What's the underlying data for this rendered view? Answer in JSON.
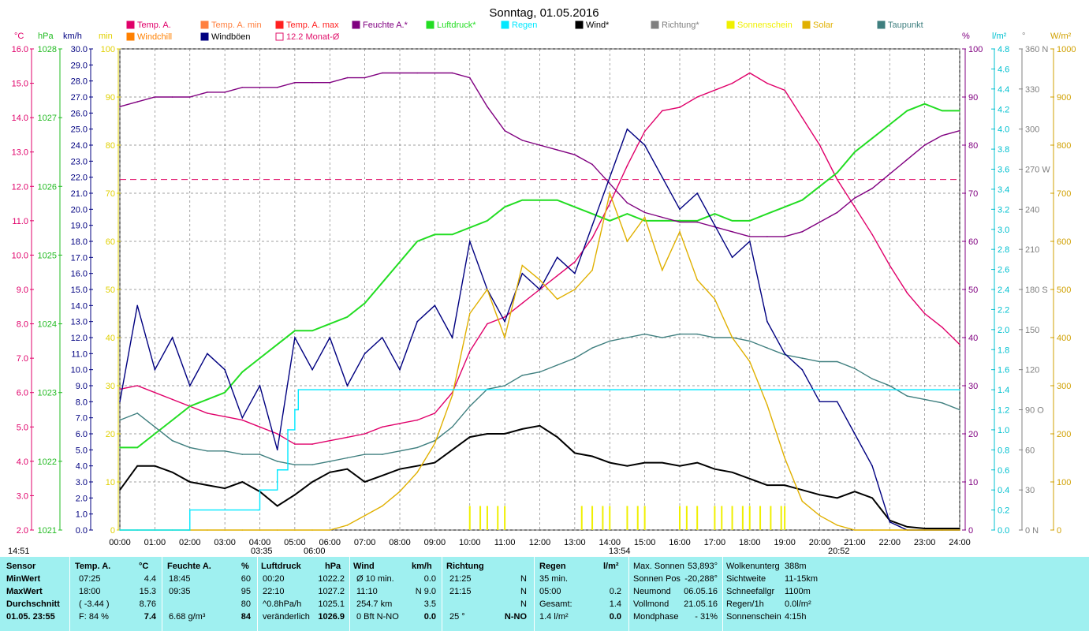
{
  "chart_data": {
    "type": "line",
    "title": "Sonntag, 01.05.2016",
    "x_unit": "hours",
    "xlim": [
      0,
      24
    ],
    "x_ticks": [
      "00:00",
      "01:00",
      "02:00",
      "03:00",
      "04:00",
      "05:00",
      "06:00",
      "07:00",
      "08:00",
      "09:00",
      "10:00",
      "11:00",
      "12:00",
      "13:00",
      "14:00",
      "15:00",
      "16:00",
      "17:00",
      "18:00",
      "19:00",
      "20:00",
      "21:00",
      "22:00",
      "23:00",
      "24:00"
    ],
    "time_markers": {
      "left": "14:51",
      "sunrise": "03:35",
      "dawn": "06:00",
      "noon": "13:54",
      "sunset": "20:52"
    },
    "axes": {
      "temp": {
        "unit": "°C",
        "ylim": [
          2,
          16
        ],
        "ticks": [
          "16.0",
          "15.0",
          "14.0",
          "13.0",
          "12.0",
          "11.0",
          "10.0",
          "9.0",
          "8.0",
          "7.0",
          "6.0",
          "5.0",
          "4.0",
          "3.0",
          "2.0"
        ]
      },
      "pressure": {
        "unit": "hPa",
        "ylim": [
          1021,
          1028
        ],
        "ticks": [
          "1028",
          "1027",
          "1026",
          "1025",
          "1024",
          "1023",
          "1022",
          "1021"
        ]
      },
      "wind": {
        "unit": "km/h",
        "ylim": [
          0,
          30
        ],
        "ticks": [
          "30.0",
          "29.0",
          "28.0",
          "27.0",
          "26.0",
          "25.0",
          "24.0",
          "23.0",
          "22.0",
          "21.0",
          "20.0",
          "19.0",
          "18.0",
          "17.0",
          "16.0",
          "15.0",
          "14.0",
          "13.0",
          "12.0",
          "11.0",
          "10.0",
          "9.0",
          "8.0",
          "7.0",
          "6.0",
          "5.0",
          "4.0",
          "3.0",
          "2.0",
          "1.0",
          "0.0"
        ]
      },
      "sunshine": {
        "unit": "min",
        "ylim": [
          0,
          100
        ],
        "ticks": [
          "100",
          "90",
          "80",
          "70",
          "60",
          "50",
          "40",
          "30",
          "20",
          "10",
          "0"
        ]
      },
      "humidity": {
        "unit": "%",
        "ylim": [
          0,
          100
        ],
        "ticks": [
          "100",
          "90",
          "80",
          "70",
          "60",
          "50",
          "40",
          "30",
          "20",
          "10",
          "0"
        ]
      },
      "rain": {
        "unit": "l/m²",
        "ylim": [
          0,
          4.8
        ],
        "ticks": [
          "4.8",
          "4.6",
          "4.4",
          "4.2",
          "4.0",
          "3.8",
          "3.6",
          "3.4",
          "3.2",
          "3.0",
          "2.8",
          "2.6",
          "2.4",
          "2.2",
          "2.0",
          "1.8",
          "1.6",
          "1.4",
          "1.2",
          "1.0",
          "0.8",
          "0.6",
          "0.4",
          "0.2",
          "0.0"
        ]
      },
      "direction": {
        "unit": "°",
        "ylim": [
          0,
          360
        ],
        "ticks": [
          "360 N",
          "330",
          "300",
          "270 W",
          "240",
          "210",
          "180 S",
          "150",
          "120",
          "90 O",
          "60",
          "30",
          "0 N"
        ]
      },
      "solar": {
        "unit": "W/m²",
        "ylim": [
          0,
          1000
        ],
        "ticks": [
          "1000",
          "900",
          "800",
          "700",
          "600",
          "500",
          "400",
          "300",
          "200",
          "100",
          "0"
        ]
      }
    },
    "legend": [
      {
        "label": "Temp. A.",
        "color": "#e0006a"
      },
      {
        "label": "Temp. A. min",
        "color": "#ff8040"
      },
      {
        "label": "Temp. A. max",
        "color": "#ff2020"
      },
      {
        "label": "Feuchte A.*",
        "color": "#800080"
      },
      {
        "label": "Luftdruck*",
        "color": "#22dd22"
      },
      {
        "label": "Regen",
        "color": "#00e8ff"
      },
      {
        "label": "Wind*",
        "color": "#000000"
      },
      {
        "label": "Richtung*",
        "color": "#808080"
      },
      {
        "label": "Sonnenschein",
        "color": "#f0f000"
      },
      {
        "label": "Solar",
        "color": "#e0b000"
      },
      {
        "label": "Taupunkt",
        "color": "#3f7f7f"
      },
      {
        "label": "Windchill",
        "color": "#ff8000"
      },
      {
        "label": "Windböen",
        "color": "#000080"
      },
      {
        "label": "12.2 Monat-Ø",
        "color": "#e0106a"
      }
    ],
    "monthly_avg_temp": 12.2,
    "series": [
      {
        "name": "Temp. A.",
        "axis": "temp",
        "color": "#e0006a",
        "x": [
          0,
          0.5,
          1,
          1.5,
          2,
          2.5,
          3,
          3.5,
          4,
          4.5,
          5,
          5.5,
          6,
          6.5,
          7,
          7.5,
          8,
          8.5,
          9,
          9.5,
          10,
          10.5,
          11,
          11.5,
          12,
          12.5,
          13,
          13.5,
          14,
          14.5,
          15,
          15.5,
          16,
          16.5,
          17,
          17.5,
          18,
          18.5,
          19,
          19.5,
          20,
          20.5,
          21,
          21.5,
          22,
          22.5,
          23,
          23.5,
          24
        ],
        "y": [
          6.1,
          6.2,
          6.0,
          5.8,
          5.6,
          5.4,
          5.3,
          5.2,
          5.0,
          4.8,
          4.5,
          4.5,
          4.6,
          4.7,
          4.8,
          5.0,
          5.1,
          5.2,
          5.4,
          6.0,
          7.2,
          8.0,
          8.2,
          8.6,
          9.0,
          9.4,
          9.8,
          10.5,
          11.5,
          12.6,
          13.6,
          14.2,
          14.3,
          14.6,
          14.8,
          15.0,
          15.3,
          15.0,
          14.8,
          14.0,
          13.2,
          12.2,
          11.4,
          10.6,
          9.7,
          8.9,
          8.3,
          7.9,
          7.4
        ]
      },
      {
        "name": "Luftdruck*",
        "axis": "pressure",
        "color": "#22dd22",
        "x": [
          0,
          0.5,
          1,
          1.5,
          2,
          2.5,
          3,
          3.5,
          4,
          4.5,
          5,
          5.5,
          6,
          6.5,
          7,
          7.5,
          8,
          8.5,
          9,
          9.5,
          10,
          10.5,
          11,
          11.5,
          12,
          12.5,
          13,
          13.5,
          14,
          14.5,
          15,
          15.5,
          16,
          16.5,
          17,
          17.5,
          18,
          18.5,
          19,
          19.5,
          20,
          20.5,
          21,
          21.5,
          22,
          22.5,
          23,
          23.5,
          24
        ],
        "y": [
          1022.2,
          1022.2,
          1022.4,
          1022.6,
          1022.8,
          1022.9,
          1023.0,
          1023.3,
          1023.5,
          1023.7,
          1023.9,
          1023.9,
          1024.0,
          1024.1,
          1024.3,
          1024.6,
          1024.9,
          1025.2,
          1025.3,
          1025.3,
          1025.4,
          1025.5,
          1025.7,
          1025.8,
          1025.8,
          1025.8,
          1025.7,
          1025.6,
          1025.5,
          1025.6,
          1025.5,
          1025.5,
          1025.5,
          1025.5,
          1025.6,
          1025.5,
          1025.5,
          1025.6,
          1025.7,
          1025.8,
          1026.0,
          1026.2,
          1026.5,
          1026.7,
          1026.9,
          1027.1,
          1027.2,
          1027.1,
          1027.1
        ]
      },
      {
        "name": "Feuchte A.*",
        "axis": "humidity",
        "color": "#800080",
        "x": [
          0,
          0.5,
          1,
          1.5,
          2,
          2.5,
          3,
          3.5,
          4,
          4.5,
          5,
          5.5,
          6,
          6.5,
          7,
          7.5,
          8,
          8.5,
          9,
          9.5,
          10,
          10.5,
          11,
          11.5,
          12,
          12.5,
          13,
          13.5,
          14,
          14.5,
          15,
          15.5,
          16,
          16.5,
          17,
          17.5,
          18,
          18.5,
          19,
          19.5,
          20,
          20.5,
          21,
          21.5,
          22,
          22.5,
          23,
          23.5,
          24
        ],
        "y": [
          88,
          89,
          90,
          90,
          90,
          91,
          91,
          92,
          92,
          92,
          93,
          93,
          93,
          94,
          94,
          95,
          95,
          95,
          95,
          95,
          94,
          88,
          83,
          81,
          80,
          79,
          78,
          76,
          72,
          68,
          66,
          65,
          64,
          64,
          63,
          62,
          61,
          61,
          61,
          62,
          64,
          66,
          69,
          71,
          74,
          77,
          80,
          82,
          83
        ]
      },
      {
        "name": "Taupunkt",
        "axis": "temp",
        "color": "#3f7f7f",
        "x": [
          0,
          0.5,
          1,
          1.5,
          2,
          2.5,
          3,
          3.5,
          4,
          4.5,
          5,
          5.5,
          6,
          6.5,
          7,
          7.5,
          8,
          8.5,
          9,
          9.5,
          10,
          10.5,
          11,
          11.5,
          12,
          12.5,
          13,
          13.5,
          14,
          14.5,
          15,
          15.5,
          16,
          16.5,
          17,
          17.5,
          18,
          18.5,
          19,
          19.5,
          20,
          20.5,
          21,
          21.5,
          22,
          22.5,
          23,
          23.5,
          24
        ],
        "y": [
          5.2,
          5.4,
          5.0,
          4.6,
          4.4,
          4.3,
          4.3,
          4.2,
          4.2,
          4.0,
          3.9,
          3.9,
          4.0,
          4.1,
          4.2,
          4.2,
          4.3,
          4.4,
          4.6,
          5.0,
          5.6,
          6.1,
          6.2,
          6.5,
          6.6,
          6.8,
          7.0,
          7.3,
          7.5,
          7.6,
          7.7,
          7.6,
          7.7,
          7.7,
          7.6,
          7.6,
          7.5,
          7.3,
          7.1,
          7.0,
          6.9,
          6.9,
          6.7,
          6.4,
          6.2,
          5.9,
          5.8,
          5.7,
          5.5
        ]
      },
      {
        "name": "Wind*",
        "axis": "wind",
        "color": "#000000",
        "x": [
          0,
          0.5,
          1,
          1.5,
          2,
          2.5,
          3,
          3.5,
          4,
          4.5,
          5,
          5.5,
          6,
          6.5,
          7,
          7.5,
          8,
          8.5,
          9,
          9.5,
          10,
          10.5,
          11,
          11.5,
          12,
          12.5,
          13,
          13.5,
          14,
          14.5,
          15,
          15.5,
          16,
          16.5,
          17,
          17.5,
          18,
          18.5,
          19,
          19.5,
          20,
          20.5,
          21,
          21.5,
          22,
          22.5,
          23,
          23.5,
          24
        ],
        "y": [
          2.5,
          4.0,
          4.0,
          3.6,
          3.0,
          2.8,
          2.6,
          3.0,
          2.4,
          1.5,
          2.2,
          3.0,
          3.6,
          3.8,
          3.0,
          3.4,
          3.8,
          4.0,
          4.2,
          5.0,
          5.8,
          6.0,
          6.0,
          6.3,
          6.5,
          5.8,
          4.8,
          4.6,
          4.2,
          4.0,
          4.2,
          4.2,
          4.0,
          4.2,
          3.8,
          3.6,
          3.2,
          2.8,
          2.8,
          2.5,
          2.2,
          2.0,
          2.4,
          2.0,
          0.6,
          0.2,
          0.1,
          0.1,
          0.1
        ]
      },
      {
        "name": "Windböen",
        "axis": "wind",
        "color": "#000080",
        "x": [
          0,
          0.5,
          1,
          1.5,
          2,
          2.5,
          3,
          3.5,
          4,
          4.5,
          5,
          5.5,
          6,
          6.5,
          7,
          7.5,
          8,
          8.5,
          9,
          9.5,
          10,
          10.5,
          11,
          11.5,
          12,
          12.5,
          13,
          13.5,
          14,
          14.5,
          15,
          15.5,
          16,
          16.5,
          17,
          17.5,
          18,
          18.5,
          19,
          19.5,
          20,
          20.5,
          21,
          21.5,
          22,
          22.5,
          23,
          23.5,
          24
        ],
        "y": [
          8,
          14,
          10,
          12,
          9,
          11,
          10,
          7,
          9,
          5,
          12,
          10,
          12,
          9,
          11,
          12,
          10,
          13,
          14,
          12,
          18,
          15,
          13,
          16,
          15,
          17,
          16,
          19,
          22,
          25,
          24,
          22,
          20,
          21,
          19,
          17,
          18,
          13,
          11,
          10,
          8,
          8,
          6,
          4,
          0.5,
          0,
          0,
          0,
          0
        ]
      },
      {
        "name": "Solar",
        "axis": "solar",
        "color": "#e0b000",
        "x": [
          0,
          0.5,
          1,
          1.5,
          2,
          2.5,
          3,
          3.5,
          4,
          4.5,
          5,
          5.5,
          6,
          6.5,
          7,
          7.5,
          8,
          8.5,
          9,
          9.5,
          10,
          10.5,
          11,
          11.5,
          12,
          12.5,
          13,
          13.5,
          14,
          14.5,
          15,
          15.5,
          16,
          16.5,
          17,
          17.5,
          18,
          18.5,
          19,
          19.5,
          20,
          20.5,
          21,
          21.5,
          22,
          22.5,
          23,
          23.5,
          24
        ],
        "y": [
          0,
          0,
          0,
          0,
          0,
          0,
          0,
          0,
          0,
          0,
          0,
          0,
          0,
          10,
          30,
          50,
          80,
          120,
          180,
          280,
          450,
          500,
          400,
          550,
          520,
          480,
          500,
          540,
          700,
          600,
          650,
          540,
          620,
          520,
          480,
          400,
          350,
          260,
          150,
          60,
          30,
          10,
          0,
          0,
          0,
          0,
          0,
          0,
          0
        ]
      },
      {
        "name": "Regen",
        "axis": "rain",
        "color": "#00e8ff",
        "x": [
          0,
          1.95,
          2,
          3.95,
          4,
          4.5,
          4.8,
          5.0,
          5.1,
          6,
          24
        ],
        "y": [
          0,
          0,
          0.2,
          0.2,
          0.4,
          0.6,
          1.0,
          1.2,
          1.4,
          1.4,
          1.4
        ]
      },
      {
        "name": "Sonnenschein",
        "axis": "sunshine",
        "color": "#f0f000",
        "x": [
          10.0,
          10.3,
          10.5,
          10.8,
          11.0,
          13.2,
          13.5,
          13.8,
          14.0,
          14.5,
          14.8,
          15.0,
          16.0,
          16.2,
          16.5,
          17.0,
          17.2,
          17.5,
          17.8,
          18.0,
          18.3,
          18.6,
          18.9,
          19.0
        ],
        "y": [
          5,
          5,
          5,
          5,
          5,
          5,
          5,
          5,
          5,
          5,
          5,
          5,
          5,
          5,
          5,
          5,
          5,
          5,
          5,
          5,
          5,
          5,
          5,
          5
        ]
      }
    ]
  },
  "panel": {
    "headers": [
      "Sensor",
      "Temp. A.",
      "°C",
      "Feuchte A.",
      "%",
      "Luftdruck",
      "hPa",
      "Wind",
      "km/h",
      "Richtung",
      "Regen",
      "l/m²"
    ],
    "rows": [
      {
        "label": "MinWert",
        "t_time": "07:25",
        "t_val": "4.4",
        "h_time": "18:45",
        "h_val": "60",
        "p_time": "00:20",
        "p_val": "1022.2",
        "w_label": "Ø 10 min.",
        "w_val": "0.0",
        "d_time": "21:25",
        "d_val": "N",
        "r_label": "35 min.",
        "r_val": ""
      },
      {
        "label": "MaxWert",
        "t_time": "18:00",
        "t_val": "15.3",
        "h_time": "09:35",
        "h_val": "95",
        "p_time": "22:10",
        "p_val": "1027.2",
        "w_label": "11:10",
        "w_val": "N 9.0",
        "d_time": "21:15",
        "d_val": "N",
        "r_label": "05:00",
        "r_val": "0.2"
      },
      {
        "label": "Durchschnitt",
        "t_time": "( -3.44 )",
        "t_val": "8.76",
        "h_time": "",
        "h_val": "80",
        "p_time": "^0.8hPa/h",
        "p_val": "1025.1",
        "w_label": "254.7 km",
        "w_val": "3.5",
        "d_time": "",
        "d_val": "N",
        "r_label": "Gesamt:",
        "r_val": "1.4"
      },
      {
        "label": "01.05. 23:55",
        "t_time": "F: 84 %",
        "t_val": "7.4",
        "h_time": "6.68 g/m³",
        "h_val": "84",
        "p_time": "veränderlich",
        "p_val": "1026.9",
        "w_label": "0 Bft N-NO",
        "w_val": "0.0",
        "d_time": "25 °",
        "d_val": "N-NO",
        "r_label": "1.4 l/m²",
        "r_val": "0.0"
      }
    ],
    "astro": [
      {
        "k": "Max. Sonnen",
        "v": "53,893°"
      },
      {
        "k": "Sonnen Pos",
        "v": "-20,288°"
      },
      {
        "k": "Neumond",
        "v": "06.05.16"
      },
      {
        "k": "Vollmond",
        "v": "21.05.16"
      },
      {
        "k": "Mondphase",
        "v": "- 31%"
      }
    ],
    "misc": [
      {
        "k": "Wolkenunterg",
        "v": "388m"
      },
      {
        "k": "Sichtweite",
        "v": "11-15km"
      },
      {
        "k": "Schneefallgr",
        "v": "1100m"
      },
      {
        "k": "Regen/1h",
        "v": "0.0l/m²"
      },
      {
        "k": "Sonnenschein",
        "v": "4:15h"
      }
    ]
  }
}
